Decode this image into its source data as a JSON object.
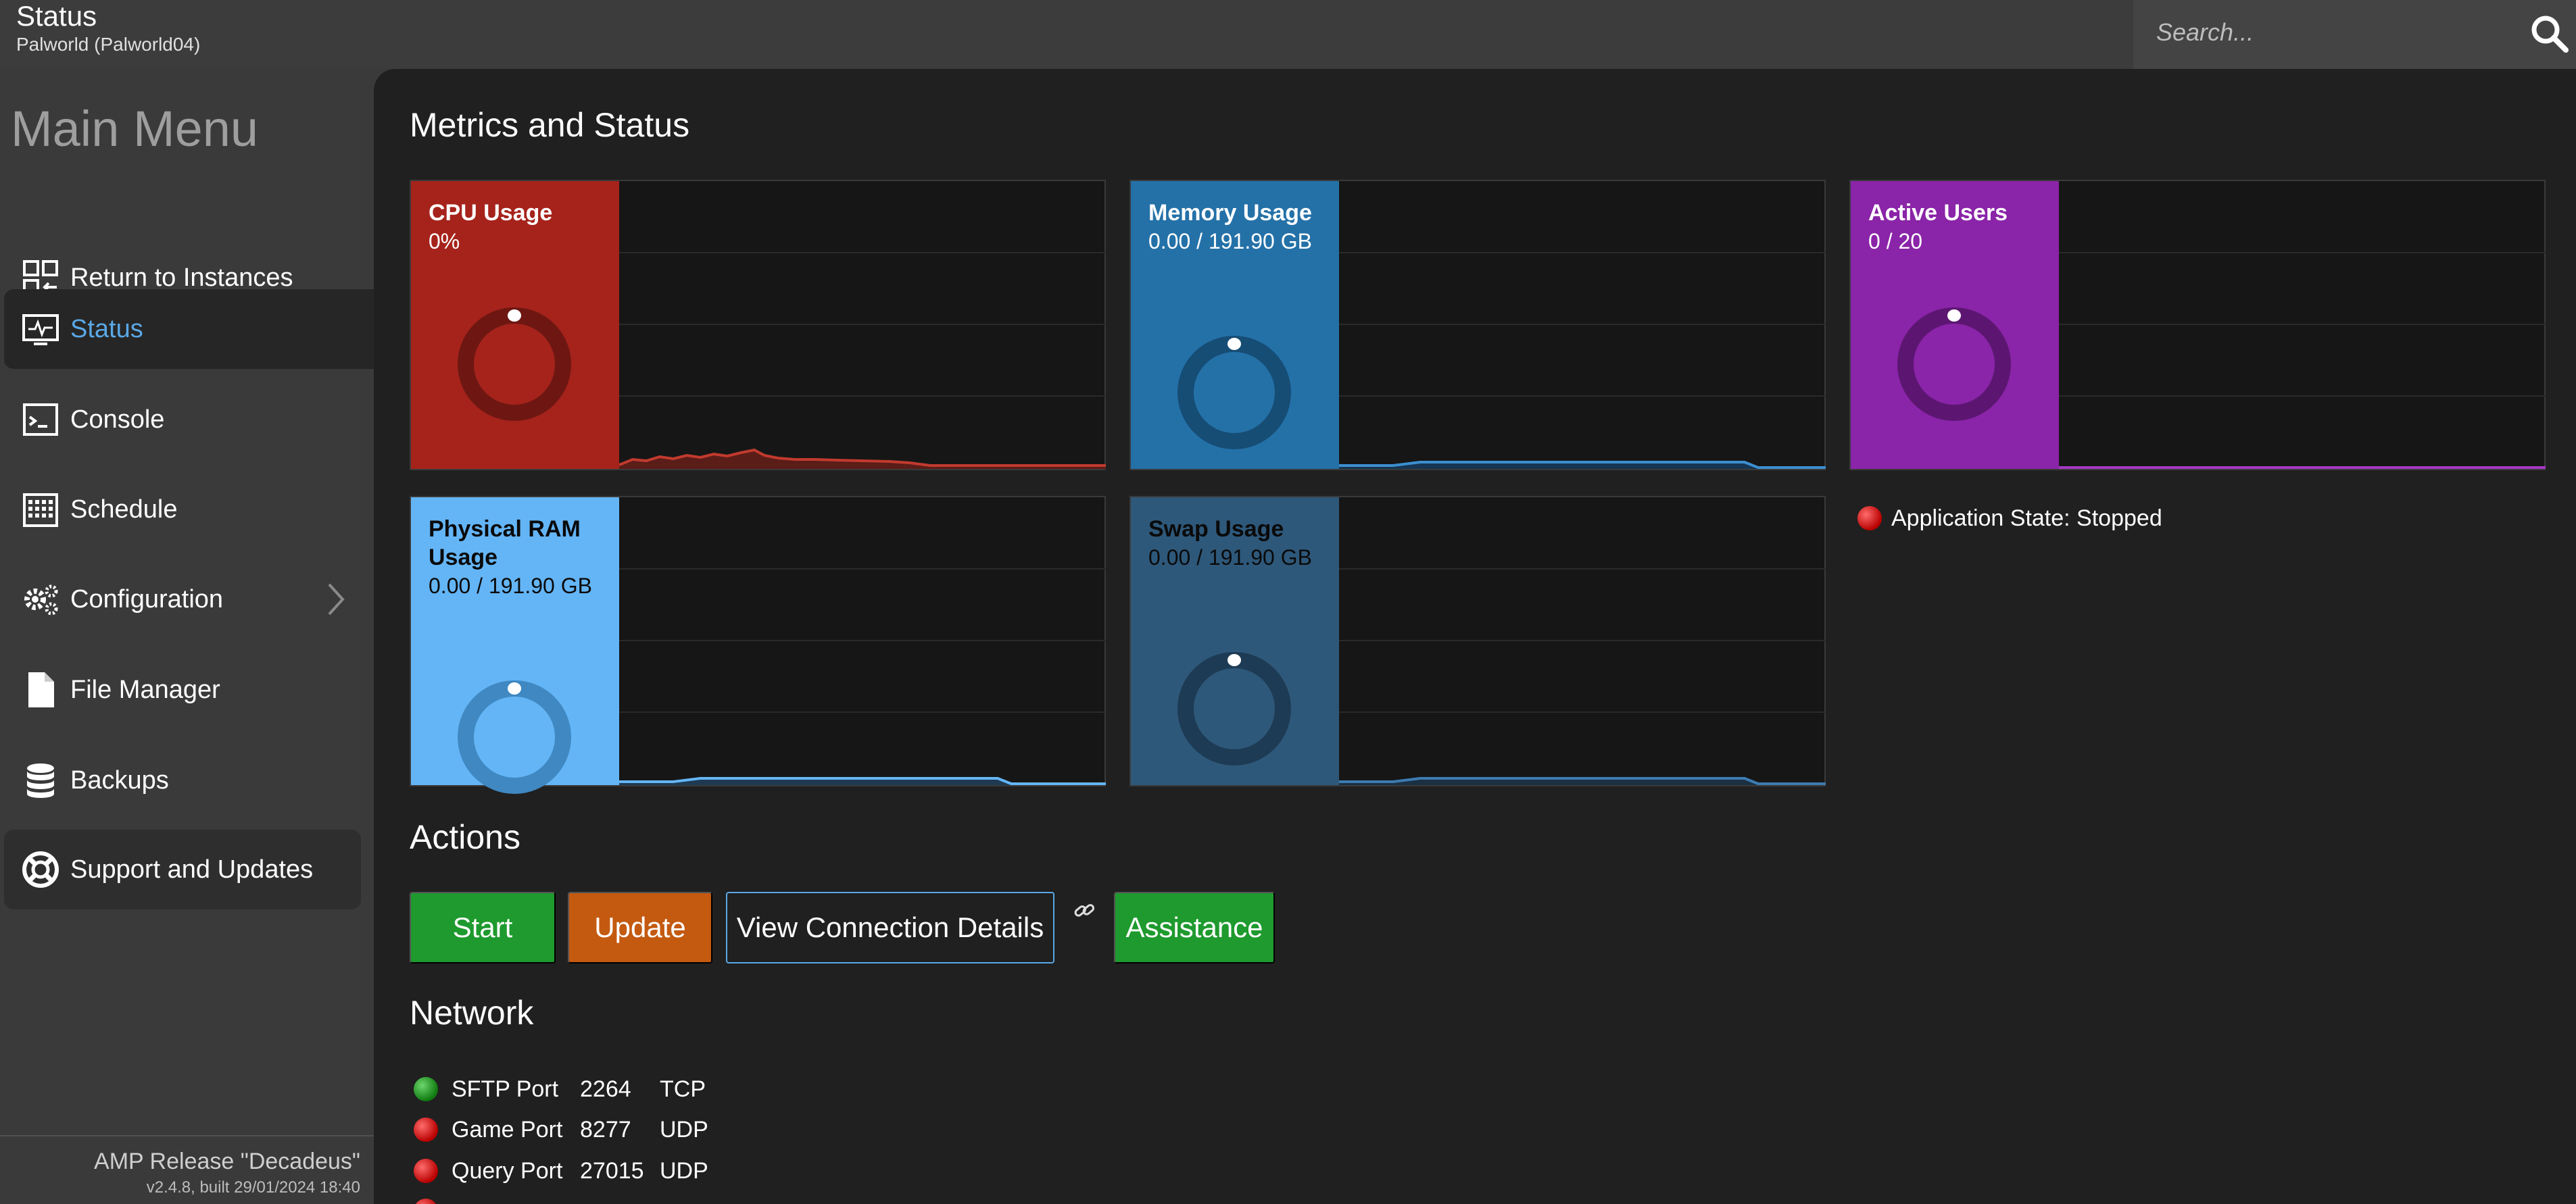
{
  "header": {
    "title": "Status",
    "subtitle": "Palworld (Palworld04)",
    "search_placeholder": "Search..."
  },
  "sidebar": {
    "title": "Main Menu",
    "items": [
      {
        "label": "Return to Instances",
        "icon": "instances-icon"
      },
      {
        "label": "Status",
        "icon": "status-monitor-icon",
        "active": true
      },
      {
        "label": "Console",
        "icon": "console-icon"
      },
      {
        "label": "Schedule",
        "icon": "schedule-icon"
      },
      {
        "label": "Configuration",
        "icon": "gears-icon",
        "has_submenu": true
      },
      {
        "label": "File Manager",
        "icon": "file-icon"
      },
      {
        "label": "Backups",
        "icon": "database-icon"
      },
      {
        "label": "Support and Updates",
        "icon": "lifebuoy-icon"
      }
    ],
    "footer": {
      "release": "AMP Release \"Decadeus\"",
      "build": "v2.4.8, built 29/01/2024 18:40"
    }
  },
  "metrics": {
    "title": "Metrics and Status",
    "cards": [
      {
        "id": "cpu",
        "title": "CPU Usage",
        "value": "0%",
        "color": "#a5231b",
        "dark": "#6e1712",
        "line": "#c23a2e",
        "fill": "#5a1d18"
      },
      {
        "id": "memory",
        "title": "Memory Usage",
        "value": "0.00 / 191.90 GB",
        "color": "#2471a8",
        "dark": "#164d75",
        "line": "#3b8fd0",
        "fill": "#173552"
      },
      {
        "id": "users",
        "title": "Active Users",
        "value": "0 / 20",
        "color": "#8a24a8",
        "dark": "#5c1672",
        "line": "#a738c8",
        "fill": "#3a1446"
      },
      {
        "id": "physical-ram",
        "title": "Physical RAM Usage",
        "value": "0.00 / 191.90 GB",
        "color": "#64b5f6",
        "dark": "#3f88c2",
        "line": "#64b5f6",
        "fill": "#1e3a52"
      },
      {
        "id": "swap",
        "title": "Swap Usage",
        "value": "0.00 / 191.90 GB",
        "color": "#2e587a",
        "dark": "#1d3b54",
        "line": "#3c7bb0",
        "fill": "#1b3043"
      }
    ],
    "app_state": "Application State: Stopped"
  },
  "actions": {
    "title": "Actions",
    "start": "Start",
    "update": "Update",
    "view_connection": "View Connection Details",
    "assistance": "Assistance"
  },
  "network": {
    "title": "Network",
    "ports": [
      {
        "name": "SFTP Port",
        "port": "2264",
        "protocol": "TCP",
        "status": "green"
      },
      {
        "name": "Game Port",
        "port": "8277",
        "protocol": "UDP",
        "status": "red"
      },
      {
        "name": "Query Port",
        "port": "27015",
        "protocol": "UDP",
        "status": "red"
      }
    ]
  }
}
